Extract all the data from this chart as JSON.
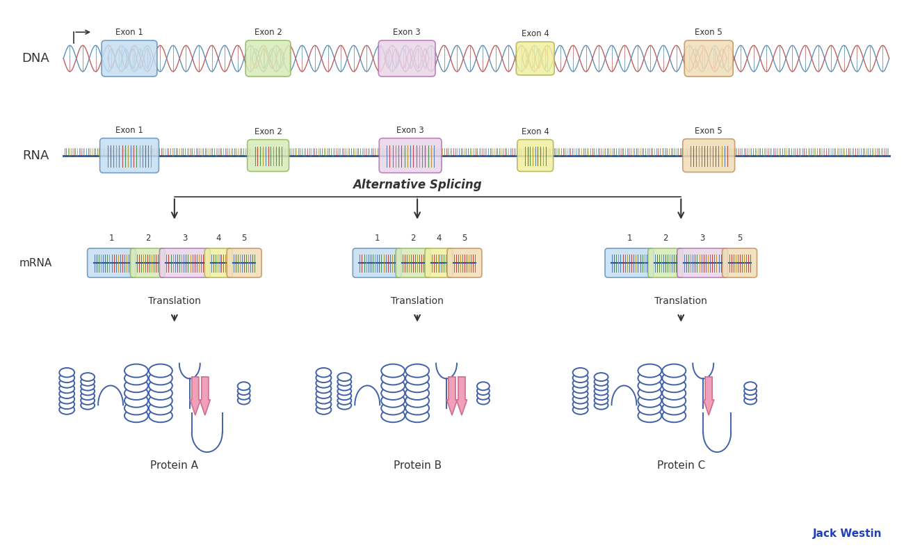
{
  "background_color": "#ffffff",
  "exon_colors": {
    "1": "#c5ddf0",
    "2": "#d8eab8",
    "3": "#e8d5e8",
    "4": "#f0efa0",
    "5": "#f0ddb8"
  },
  "exon_border_colors": {
    "1": "#6090b8",
    "2": "#90b860",
    "3": "#b070b0",
    "4": "#b0b050",
    "5": "#c09060"
  },
  "dna_helix_color1": "#6090b8",
  "dna_helix_color2": "#c06060",
  "dna_rung_color1": "#4080a8",
  "dna_rung_color2": "#c05050",
  "rna_line_color": "#2050a0",
  "rna_tick_colors": [
    "#4070b0",
    "#b03030",
    "#408040",
    "#b09020"
  ],
  "protein_blue": "#4060a8",
  "protein_pink": "#f0a0b8",
  "protein_pink_border": "#d07090",
  "splicing_text": "Alternative Splicing",
  "protein_labels": [
    "Protein A",
    "Protein B",
    "Protein C"
  ],
  "translation_label": "Translation",
  "jack_westin_color": "#2040b8",
  "text_color": "#333333"
}
